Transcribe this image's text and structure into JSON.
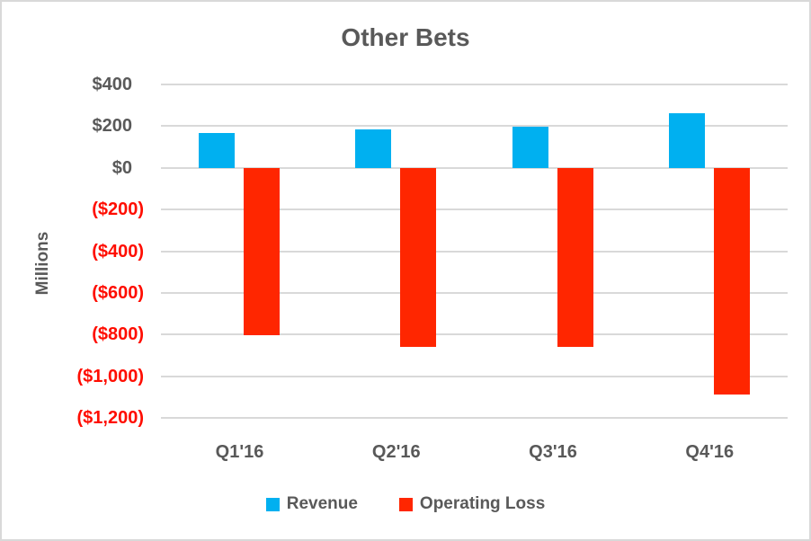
{
  "chart": {
    "title": "Other Bets",
    "y_axis_title": "Millions",
    "tick_labels": [
      {
        "label": "$400",
        "value": 400,
        "negative": false
      },
      {
        "label": "$200",
        "value": 200,
        "negative": false
      },
      {
        "label": "$0",
        "value": 0,
        "negative": false
      },
      {
        "label": "($200)",
        "value": -200,
        "negative": true
      },
      {
        "label": "($400)",
        "value": -400,
        "negative": true
      },
      {
        "label": "($600)",
        "value": -600,
        "negative": true
      },
      {
        "label": "($800)",
        "value": -800,
        "negative": true
      },
      {
        "label": "($1,000)",
        "value": -1000,
        "negative": true
      },
      {
        "label": "($1,200)",
        "value": -1200,
        "negative": true
      }
    ]
  },
  "legend": {
    "items": [
      {
        "label": "Revenue",
        "color": "#00B0F0"
      },
      {
        "label": "Operating Loss",
        "color": "#FF2600"
      }
    ]
  },
  "colors": {
    "revenue_blue": "#00B0F0",
    "loss_red": "#FF2600",
    "axis_text_gray": "#595959",
    "negative_text_red": "#FF0D00",
    "gridline_gray": "#D9D9D9",
    "frame_border_gray": "#D9D9D9"
  },
  "chart_data": {
    "type": "bar",
    "title": "Other Bets",
    "ylabel": "Millions",
    "categories": [
      "Q1'16",
      "Q2'16",
      "Q3'16",
      "Q4'16"
    ],
    "series": [
      {
        "name": "Revenue",
        "color": "#00B0F0",
        "values": [
          166,
          185,
          197,
          262
        ]
      },
      {
        "name": "Operating Loss",
        "color": "#FF2600",
        "values": [
          -802,
          -859,
          -861,
          -1088
        ]
      }
    ],
    "ylim": [
      -1200,
      400
    ],
    "ytick_step": 200,
    "grid": true,
    "legend_position": "bottom"
  }
}
